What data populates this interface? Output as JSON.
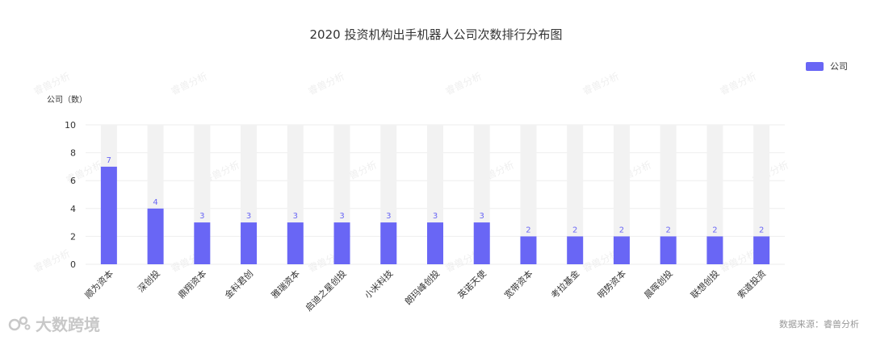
{
  "chart_data": {
    "type": "bar",
    "title": "2020 投资机构出手机器人公司次数排行分布图",
    "ylabel": "公司（数）",
    "xlabel": "",
    "categories": [
      "顺为资本",
      "深创投",
      "鼎翔资本",
      "金科君创",
      "雅瑞资本",
      "启迪之星创投",
      "小米科技",
      "朗玛峰创投",
      "英诺天使",
      "宽带资本",
      "考拉基金",
      "明势资本",
      "晨晖创投",
      "联想创投",
      "索道投资"
    ],
    "series": [
      {
        "name": "公司",
        "values": [
          7,
          4,
          3,
          3,
          3,
          3,
          3,
          3,
          3,
          2,
          2,
          2,
          2,
          2,
          2
        ]
      }
    ],
    "ylim": [
      0,
      10
    ],
    "yticks": [
      0,
      2,
      4,
      6,
      8,
      10
    ],
    "grid": true,
    "legend_position": "top-right",
    "colors": {
      "bar": "#6966f5",
      "bar_background": "#f2f2f2",
      "value_label": "#6966f5",
      "axis_text": "#333333",
      "grid": "#eeeeee"
    }
  },
  "footer": {
    "source": "数据来源：睿兽分析",
    "brand": "大数跨境"
  },
  "watermark": "睿兽分析"
}
